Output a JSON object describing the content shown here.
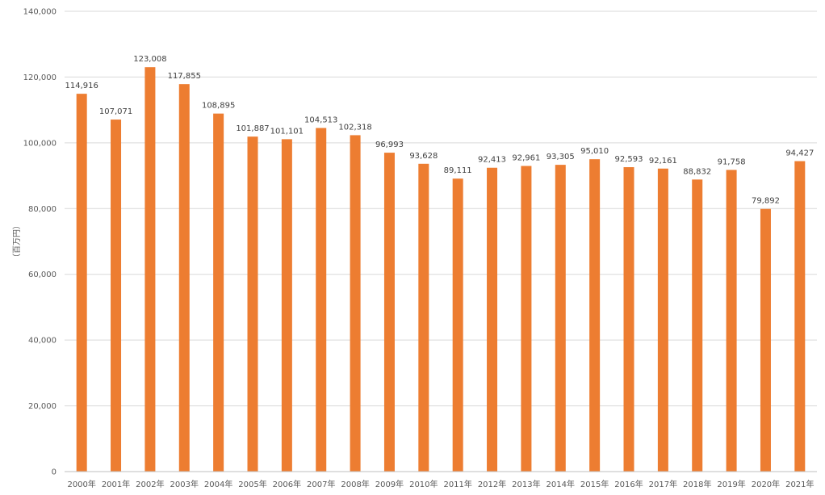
{
  "chart_data": {
    "type": "bar",
    "title": "",
    "xlabel": "",
    "ylabel": "（百万円）",
    "ylim": [
      0,
      140000
    ],
    "yticks": [
      0,
      20000,
      40000,
      60000,
      80000,
      100000,
      120000,
      140000
    ],
    "ytick_labels": [
      "0",
      "20,000",
      "40,000",
      "60,000",
      "80,000",
      "100,000",
      "120,000",
      "140,000"
    ],
    "grid": true,
    "legend": "none",
    "bar_color": "#ED7D31",
    "categories": [
      "2000年",
      "2001年",
      "2002年",
      "2003年",
      "2004年",
      "2005年",
      "2006年",
      "2007年",
      "2008年",
      "2009年",
      "2010年",
      "2011年",
      "2012年",
      "2013年",
      "2014年",
      "2015年",
      "2016年",
      "2017年",
      "2018年",
      "2019年",
      "2020年",
      "2021年"
    ],
    "values": [
      114916,
      107071,
      123008,
      117855,
      108895,
      101887,
      101101,
      104513,
      102318,
      96993,
      93628,
      89111,
      92413,
      92961,
      93305,
      95010,
      92593,
      92161,
      88832,
      91758,
      79892,
      94427
    ],
    "value_labels": [
      "114,916",
      "107,071",
      "123,008",
      "117,855",
      "108,895",
      "101,887",
      "101,101",
      "104,513",
      "102,318",
      "96,993",
      "93,628",
      "89,111",
      "92,413",
      "92,961",
      "93,305",
      "95,010",
      "92,593",
      "92,161",
      "88,832",
      "91,758",
      "79,892",
      "94,427"
    ]
  }
}
